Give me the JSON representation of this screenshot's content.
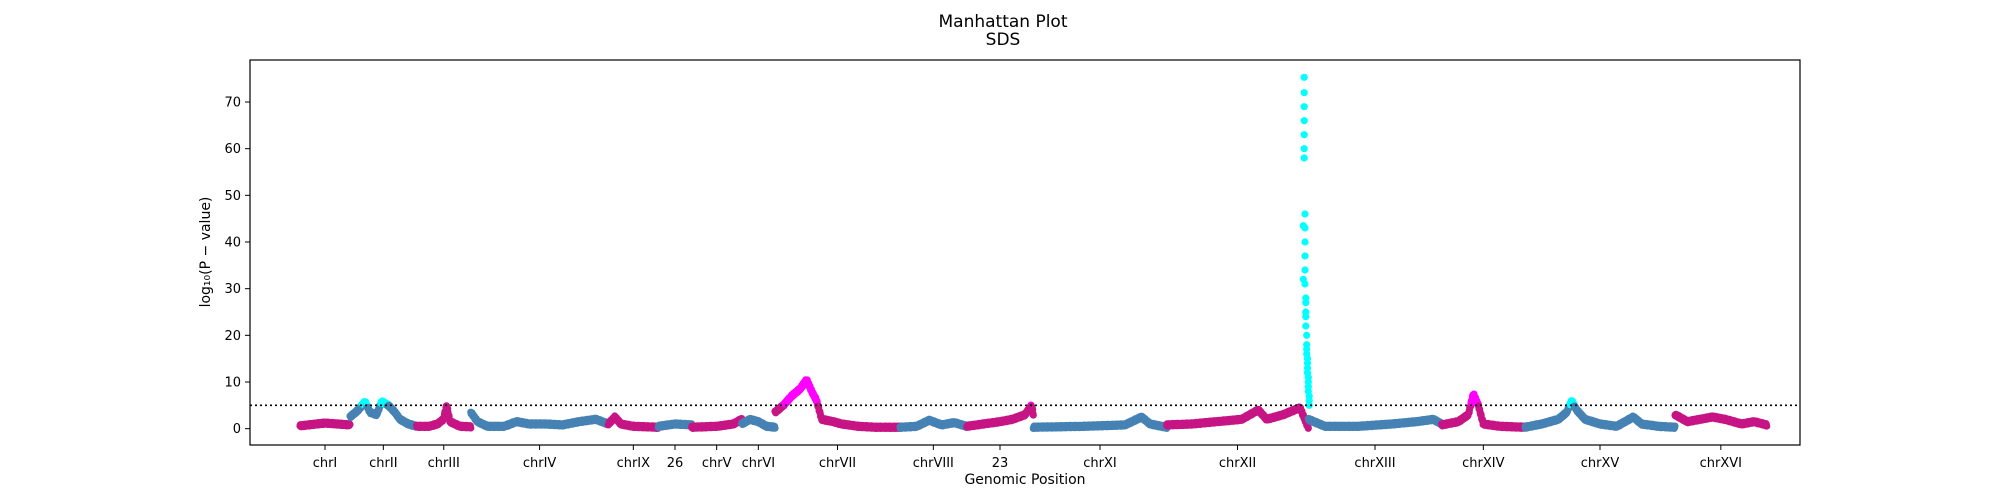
{
  "chart_data": {
    "type": "scatter",
    "title": "Manhattan Plot",
    "subtitle": "SDS",
    "xlabel": "Genomic Position",
    "ylabel": "log₁₀(P − value)",
    "ylim": [
      -3.5,
      79
    ],
    "y_ticks": [
      0,
      10,
      20,
      30,
      40,
      50,
      60,
      70
    ],
    "threshold": 5,
    "grid": false,
    "colors": {
      "odd": "#C71585",
      "even": "#4682B4",
      "highlight_odd": "#FF00FF",
      "highlight_even": "#00FFFF",
      "threshold_line": "#000000"
    },
    "chromosomes": [
      {
        "label": "chrI",
        "start": 0,
        "end": 60,
        "profile": [
          [
            0,
            0.6
          ],
          [
            30,
            1.2
          ],
          [
            60,
            0.8
          ]
        ]
      },
      {
        "label": "chrII",
        "start": 60,
        "end": 140,
        "profile": [
          [
            0,
            2.5
          ],
          [
            10,
            4
          ],
          [
            18,
            5.8
          ],
          [
            24,
            3.5
          ],
          [
            32,
            3
          ],
          [
            38,
            5.8
          ],
          [
            46,
            5
          ],
          [
            54,
            3.5
          ],
          [
            60,
            2
          ],
          [
            70,
            1
          ],
          [
            80,
            0.5
          ]
        ]
      },
      {
        "label": "chrIII",
        "start": 140,
        "end": 205,
        "profile": [
          [
            0,
            0.5
          ],
          [
            15,
            0.5
          ],
          [
            25,
            1
          ],
          [
            32,
            2
          ],
          [
            36,
            5
          ],
          [
            40,
            1.5
          ],
          [
            52,
            0.5
          ],
          [
            65,
            0.4
          ]
        ]
      },
      {
        "label": "chrIV",
        "start": 205,
        "end": 370,
        "profile": [
          [
            0,
            3.5
          ],
          [
            8,
            1.5
          ],
          [
            20,
            0.5
          ],
          [
            40,
            0.5
          ],
          [
            55,
            1.5
          ],
          [
            70,
            1
          ],
          [
            90,
            1
          ],
          [
            110,
            0.8
          ],
          [
            130,
            1.5
          ],
          [
            150,
            2
          ],
          [
            165,
            1
          ]
        ]
      },
      {
        "label": "chrIX",
        "start": 370,
        "end": 430,
        "profile": [
          [
            0,
            1
          ],
          [
            8,
            2.5
          ],
          [
            15,
            1
          ],
          [
            30,
            0.5
          ],
          [
            60,
            0.3
          ]
        ]
      },
      {
        "label": "26",
        "start": 430,
        "end": 470,
        "profile": [
          [
            0,
            0.5
          ],
          [
            20,
            1
          ],
          [
            40,
            0.8
          ]
        ]
      },
      {
        "label": "chrV",
        "start": 470,
        "end": 530,
        "profile": [
          [
            0,
            0.3
          ],
          [
            30,
            0.5
          ],
          [
            50,
            1
          ],
          [
            60,
            2
          ]
        ]
      },
      {
        "label": "chrVI",
        "start": 530,
        "end": 570,
        "profile": [
          [
            0,
            1
          ],
          [
            10,
            2
          ],
          [
            20,
            1.5
          ],
          [
            30,
            0.5
          ],
          [
            40,
            0.3
          ]
        ]
      },
      {
        "label": "chrVII",
        "start": 570,
        "end": 720,
        "profile": [
          [
            0,
            3.5
          ],
          [
            10,
            5
          ],
          [
            20,
            7
          ],
          [
            30,
            8.5
          ],
          [
            38,
            10.5
          ],
          [
            44,
            8
          ],
          [
            50,
            6
          ],
          [
            56,
            2
          ],
          [
            70,
            1.5
          ],
          [
            80,
            1
          ],
          [
            100,
            0.5
          ],
          [
            120,
            0.3
          ],
          [
            150,
            0.3
          ]
        ]
      },
      {
        "label": "chrVIII",
        "start": 720,
        "end": 800,
        "profile": [
          [
            0,
            0.3
          ],
          [
            20,
            0.5
          ],
          [
            35,
            1.8
          ],
          [
            50,
            0.8
          ],
          [
            65,
            1.3
          ],
          [
            80,
            0.5
          ]
        ]
      },
      {
        "label": "23",
        "start": 800,
        "end": 880,
        "profile": [
          [
            0,
            0.5
          ],
          [
            20,
            1
          ],
          [
            40,
            1.5
          ],
          [
            55,
            2
          ],
          [
            70,
            3
          ],
          [
            78,
            5
          ],
          [
            80,
            3
          ]
        ]
      },
      {
        "label": "chrXI",
        "start": 880,
        "end": 1040,
        "profile": [
          [
            0,
            0.3
          ],
          [
            60,
            0.5
          ],
          [
            110,
            0.8
          ],
          [
            130,
            2.5
          ],
          [
            140,
            1
          ],
          [
            160,
            0.3
          ]
        ]
      },
      {
        "label": "chrXII",
        "start": 1040,
        "end": 1210,
        "profile": [
          [
            0,
            0.8
          ],
          [
            30,
            1
          ],
          [
            60,
            1.5
          ],
          [
            90,
            2
          ],
          [
            110,
            4
          ],
          [
            120,
            2
          ],
          [
            140,
            3
          ],
          [
            160,
            4.5
          ],
          [
            168,
            1
          ],
          [
            170,
            0.3
          ]
        ]
      },
      {
        "label": "chrXIII",
        "start": 1210,
        "end": 1370,
        "profile": [
          [
            0,
            2
          ],
          [
            20,
            0.5
          ],
          [
            60,
            0.5
          ],
          [
            100,
            1
          ],
          [
            130,
            1.5
          ],
          [
            150,
            2
          ],
          [
            160,
            1
          ]
        ]
      },
      {
        "label": "chrXIV",
        "start": 1370,
        "end": 1470,
        "profile": [
          [
            0,
            0.8
          ],
          [
            20,
            1.5
          ],
          [
            32,
            3
          ],
          [
            38,
            7.5
          ],
          [
            44,
            5
          ],
          [
            50,
            1
          ],
          [
            70,
            0.5
          ],
          [
            100,
            0.3
          ]
        ]
      },
      {
        "label": "chrXV",
        "start": 1470,
        "end": 1650,
        "profile": [
          [
            0,
            0.3
          ],
          [
            20,
            1
          ],
          [
            40,
            2
          ],
          [
            50,
            3.5
          ],
          [
            56,
            6
          ],
          [
            62,
            4
          ],
          [
            72,
            2
          ],
          [
            90,
            1
          ],
          [
            110,
            0.5
          ],
          [
            130,
            2.5
          ],
          [
            140,
            1
          ],
          [
            160,
            0.5
          ],
          [
            180,
            0.3
          ]
        ]
      },
      {
        "label": "chrXVI",
        "start": 1650,
        "end": 1760,
        "profile": [
          [
            0,
            3
          ],
          [
            15,
            1.5
          ],
          [
            30,
            2
          ],
          [
            45,
            2.5
          ],
          [
            60,
            2
          ],
          [
            80,
            1
          ],
          [
            95,
            1.5
          ],
          [
            110,
            0.8
          ]
        ]
      }
    ],
    "peak": {
      "x": [
        1204,
        1204,
        1205,
        1205,
        1205,
        1205,
        1205,
        1205,
        1205,
        1206,
        1206,
        1206,
        1206,
        1206,
        1206,
        1207,
        1207,
        1207,
        1207,
        1207,
        1208,
        1208,
        1208,
        1208,
        1209,
        1209,
        1209,
        1209,
        1210,
        1210,
        1210,
        1210,
        1211,
        1211,
        1211
      ],
      "y": [
        32,
        43.5,
        75.3,
        72,
        69,
        66,
        63,
        60,
        58,
        46,
        43,
        40,
        37,
        34,
        31,
        28,
        27,
        25,
        24,
        22,
        20,
        18,
        17,
        16,
        15,
        14,
        13,
        12,
        11,
        10,
        9,
        8,
        7,
        6,
        5
      ]
    }
  }
}
